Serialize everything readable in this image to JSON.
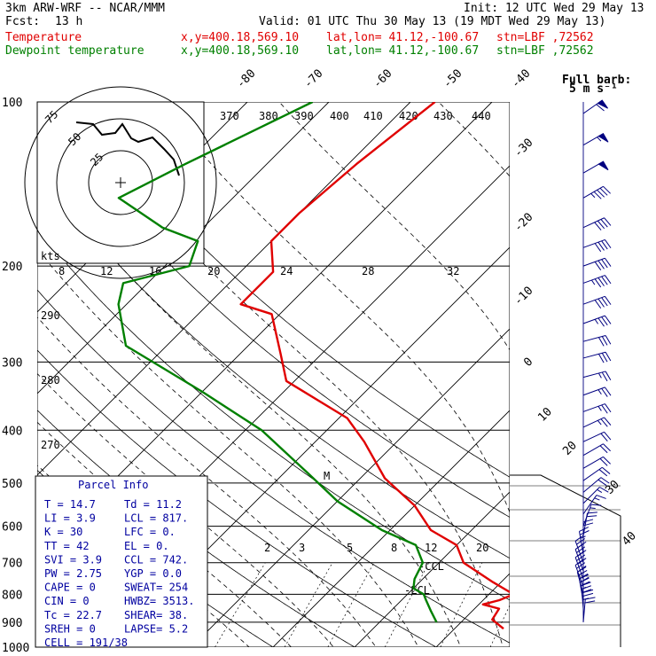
{
  "header": {
    "model": "3km ARW-WRF -- NCAR/MMM",
    "init": "Init: 12 UTC Wed 29 May 13",
    "fcst_label": "Fcst:",
    "fcst_value": "13 h",
    "valid": "Valid: 01 UTC Thu 30 May 13 (19 MDT Wed 29 May 13)",
    "temp_label": "Temperature",
    "dew_label": "Dewpoint temperature",
    "xy": "x,y=400.18,569.10",
    "latlon": "lat,lon= 41.12,-100.67",
    "stn": "stn=LBF ,72562"
  },
  "barb_legend": {
    "title": "Full barb:",
    "value": "5 m s⁻¹"
  },
  "hodograph": {
    "units": "kts",
    "ring_labels": [
      "75",
      "50",
      "25"
    ]
  },
  "parcel_info": {
    "title": "Parcel Info",
    "rows": [
      [
        "T  =   14.7",
        "Td =  11.2"
      ],
      [
        "LI =    3.9",
        "LCL =  817."
      ],
      [
        "K  =     30",
        "LFC =    0."
      ],
      [
        "TT =     42",
        "EL  =    0."
      ],
      [
        "SVI =   3.9",
        "CCL = 742."
      ],
      [
        "PW =   2.75",
        "YGP =  0.0"
      ],
      [
        "CAPE =    0",
        "SWEAT=  254"
      ],
      [
        "CIN =     0",
        "HWBZ= 3513."
      ],
      [
        "Tc =   22.7",
        "SHEAR=  38."
      ],
      [
        "SREH =    0",
        "LAPSE=  5.2"
      ]
    ],
    "cell": "CELL = 191/38"
  },
  "chart_data": {
    "type": "line",
    "title": "",
    "ylabel": "",
    "y_ticks": [
      "100",
      "200",
      "300",
      "400",
      "500",
      "600",
      "700",
      "800",
      "900",
      "1000"
    ],
    "isotherm_labels": [
      "-80",
      "-70",
      "-60",
      "-50",
      "-40",
      "-30",
      "-20",
      "-10",
      "0",
      "10",
      "20",
      "30",
      "40"
    ],
    "theta_e_labels": [
      "370",
      "380",
      "390",
      "400",
      "410",
      "420",
      "430",
      "440"
    ],
    "hodo_speed_labels": [
      "8",
      "12",
      "16",
      "20",
      "24",
      "28",
      "32"
    ],
    "theta_labels": [
      "290",
      "280",
      "270"
    ],
    "mixing_ratio_labels": [
      "2",
      "3",
      "5",
      "8",
      "12",
      "20"
    ],
    "level_labels": [
      "M",
      "-CCL",
      "-LCL"
    ],
    "series": [
      {
        "name": "Temperature",
        "color": "#e00000",
        "points": [
          [
            100,
            -57
          ],
          [
            130,
            -59
          ],
          [
            160,
            -60
          ],
          [
            180,
            -60
          ],
          [
            205,
            -56
          ],
          [
            235,
            -56
          ],
          [
            245,
            -51
          ],
          [
            290,
            -45
          ],
          [
            325,
            -41
          ],
          [
            380,
            -29
          ],
          [
            420,
            -24
          ],
          [
            490,
            -17
          ],
          [
            550,
            -10
          ],
          [
            610,
            -5
          ],
          [
            650,
            0
          ],
          [
            700,
            3
          ],
          [
            760,
            9
          ],
          [
            800,
            13
          ],
          [
            820,
            12
          ],
          [
            835,
            10.5
          ],
          [
            850,
            13
          ],
          [
            890,
            13.5
          ],
          [
            925,
            16
          ]
        ]
      },
      {
        "name": "Dewpoint temperature",
        "color": "#008000",
        "points": [
          [
            100,
            -72
          ],
          [
            130,
            -80
          ],
          [
            150,
            -84
          ],
          [
            170,
            -75
          ],
          [
            180,
            -69
          ],
          [
            200,
            -67
          ],
          [
            215,
            -73
          ],
          [
            235,
            -71
          ],
          [
            280,
            -65
          ],
          [
            340,
            -50
          ],
          [
            400,
            -38
          ],
          [
            480,
            -27
          ],
          [
            540,
            -20
          ],
          [
            610,
            -11
          ],
          [
            650,
            -5
          ],
          [
            700,
            -2
          ],
          [
            750,
            -1
          ],
          [
            780,
            0
          ],
          [
            800,
            2
          ],
          [
            820,
            3
          ],
          [
            860,
            5
          ],
          [
            900,
            7
          ]
        ]
      }
    ],
    "wind_barbs": {
      "units": "kts",
      "levels": [
        [
          105,
          235,
          60
        ],
        [
          120,
          240,
          55
        ],
        [
          135,
          240,
          50
        ],
        [
          150,
          240,
          45
        ],
        [
          170,
          245,
          40
        ],
        [
          185,
          250,
          38
        ],
        [
          200,
          250,
          40
        ],
        [
          215,
          250,
          45
        ],
        [
          235,
          250,
          38
        ],
        [
          255,
          250,
          35
        ],
        [
          275,
          255,
          30
        ],
        [
          295,
          255,
          30
        ],
        [
          320,
          255,
          25
        ],
        [
          345,
          250,
          25
        ],
        [
          370,
          250,
          25
        ],
        [
          395,
          245,
          25
        ],
        [
          420,
          245,
          20
        ],
        [
          445,
          240,
          20
        ],
        [
          470,
          240,
          18
        ],
        [
          495,
          235,
          18
        ],
        [
          520,
          230,
          18
        ],
        [
          545,
          225,
          15
        ],
        [
          570,
          215,
          15
        ],
        [
          600,
          200,
          15
        ],
        [
          625,
          190,
          18
        ],
        [
          650,
          180,
          22
        ],
        [
          675,
          170,
          25
        ],
        [
          700,
          160,
          28
        ],
        [
          725,
          160,
          30
        ],
        [
          750,
          160,
          32
        ],
        [
          775,
          160,
          35
        ],
        [
          800,
          165,
          38
        ],
        [
          825,
          170,
          35
        ],
        [
          850,
          175,
          30
        ],
        [
          875,
          180,
          25
        ],
        [
          900,
          185,
          20
        ]
      ]
    }
  }
}
